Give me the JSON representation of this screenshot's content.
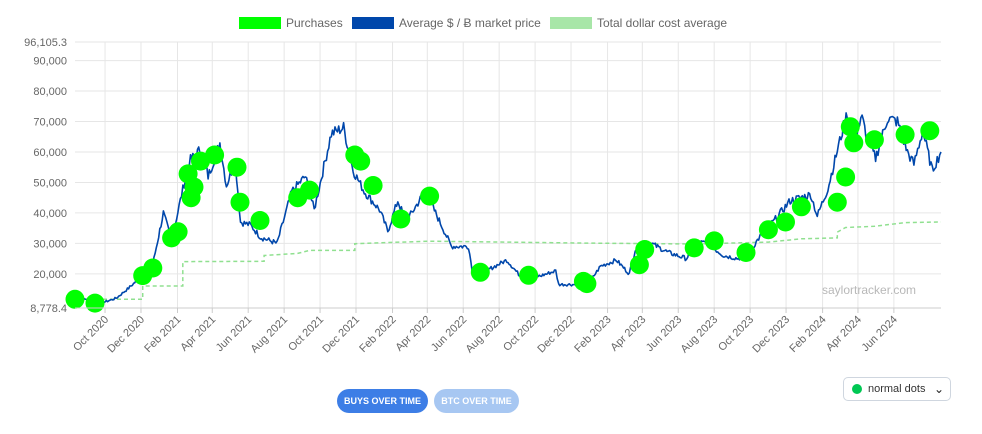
{
  "chart_data": {
    "type": "line",
    "legend": [
      {
        "label": "Purchases",
        "color": "#00ff00",
        "style": "solid"
      },
      {
        "label": "Average $ / Ƀ market price",
        "color": "#0047ab",
        "style": "solid"
      },
      {
        "label": "Total dollar cost average",
        "color": "#90e090",
        "style": "dashed"
      }
    ],
    "legend_position": "top-center",
    "grid": true,
    "ylim": [
      8778.4,
      96105.3
    ],
    "y_ticks": [
      "8,778.4",
      "20,000",
      "30,000",
      "40,000",
      "50,000",
      "60,000",
      "70,000",
      "80,000",
      "90,000",
      "96,105.3"
    ],
    "x_ticks": [
      "Oct 2020",
      "Dec 2020",
      "Feb 2021",
      "Apr 2021",
      "Jun 2021",
      "Aug 2021",
      "Oct 2021",
      "Dec 2021",
      "Feb 2022",
      "Apr 2022",
      "Jun 2022",
      "Aug 2022",
      "Oct 2022",
      "Dec 2022",
      "Feb 2023",
      "Apr 2023",
      "Jun 2023",
      "Aug 2023",
      "Oct 2023",
      "Dec 2023",
      "Feb 2024",
      "Apr 2024",
      "Jun 2024"
    ],
    "x_range": [
      "2020-08-11",
      "2024-08-20"
    ],
    "series": [
      {
        "name": "Average $ / Ƀ market price",
        "color": "#0047ab",
        "points": [
          [
            "2020-08-11",
            11500
          ],
          [
            "2020-09-01",
            11700
          ],
          [
            "2020-10-01",
            10800
          ],
          [
            "2020-10-20",
            12000
          ],
          [
            "2020-11-10",
            15300
          ],
          [
            "2020-12-01",
            19000
          ],
          [
            "2020-12-21",
            23000
          ],
          [
            "2021-01-08",
            40000
          ],
          [
            "2021-01-22",
            31000
          ],
          [
            "2021-02-08",
            46000
          ],
          [
            "2021-02-21",
            57000
          ],
          [
            "2021-03-13",
            61000
          ],
          [
            "2021-03-25",
            52000
          ],
          [
            "2021-04-14",
            63000
          ],
          [
            "2021-04-25",
            49000
          ],
          [
            "2021-05-10",
            57000
          ],
          [
            "2021-05-19",
            37000
          ],
          [
            "2021-06-05",
            36000
          ],
          [
            "2021-06-22",
            32000
          ],
          [
            "2021-07-20",
            30000
          ],
          [
            "2021-08-14",
            47000
          ],
          [
            "2021-09-06",
            52000
          ],
          [
            "2021-09-21",
            41000
          ],
          [
            "2021-10-20",
            66000
          ],
          [
            "2021-11-10",
            68000
          ],
          [
            "2021-11-26",
            54000
          ],
          [
            "2021-12-15",
            47000
          ],
          [
            "2022-01-10",
            41000
          ],
          [
            "2022-01-24",
            34000
          ],
          [
            "2022-02-10",
            44000
          ],
          [
            "2022-02-24",
            37000
          ],
          [
            "2022-03-28",
            47000
          ],
          [
            "2022-04-15",
            40000
          ],
          [
            "2022-05-12",
            29000
          ],
          [
            "2022-06-10",
            29000
          ],
          [
            "2022-06-18",
            19000
          ],
          [
            "2022-07-10",
            21000
          ],
          [
            "2022-08-14",
            24500
          ],
          [
            "2022-09-07",
            19000
          ],
          [
            "2022-10-10",
            19300
          ],
          [
            "2022-11-05",
            21000
          ],
          [
            "2022-11-10",
            16500
          ],
          [
            "2022-12-30",
            16500
          ],
          [
            "2023-01-20",
            22500
          ],
          [
            "2023-02-16",
            24500
          ],
          [
            "2023-03-10",
            20000
          ],
          [
            "2023-03-20",
            28000
          ],
          [
            "2023-04-13",
            30300
          ],
          [
            "2023-05-15",
            27000
          ],
          [
            "2023-06-15",
            25000
          ],
          [
            "2023-06-30",
            30500
          ],
          [
            "2023-07-20",
            30000
          ],
          [
            "2023-08-17",
            26000
          ],
          [
            "2023-09-11",
            25000
          ],
          [
            "2023-10-01",
            27500
          ],
          [
            "2023-10-24",
            34000
          ],
          [
            "2023-11-09",
            37000
          ],
          [
            "2023-12-08",
            44000
          ],
          [
            "2024-01-12",
            46000
          ],
          [
            "2024-01-23",
            39000
          ],
          [
            "2024-02-10",
            48000
          ],
          [
            "2024-02-28",
            62000
          ],
          [
            "2024-03-14",
            73000
          ],
          [
            "2024-03-20",
            62000
          ],
          [
            "2024-04-08",
            71000
          ],
          [
            "2024-04-19",
            63000
          ],
          [
            "2024-05-01",
            58000
          ],
          [
            "2024-05-21",
            71000
          ],
          [
            "2024-06-07",
            70000
          ],
          [
            "2024-06-24",
            60000
          ],
          [
            "2024-07-05",
            56000
          ],
          [
            "2024-07-20",
            67000
          ],
          [
            "2024-08-05",
            54000
          ],
          [
            "2024-08-20",
            60000
          ]
        ]
      },
      {
        "name": "Total dollar cost average",
        "color": "#90e090",
        "points": [
          [
            "2020-08-11",
            11650
          ],
          [
            "2020-09-14",
            11650
          ],
          [
            "2020-12-04",
            11650
          ],
          [
            "2020-12-04",
            16000
          ],
          [
            "2021-02-10",
            16000
          ],
          [
            "2021-02-10",
            24000
          ],
          [
            "2021-06-28",
            24100
          ],
          [
            "2021-06-28",
            26000
          ],
          [
            "2021-08-24",
            26700
          ],
          [
            "2021-09-13",
            27700
          ],
          [
            "2021-11-29",
            27700
          ],
          [
            "2021-11-29",
            29900
          ],
          [
            "2022-02-01",
            30300
          ],
          [
            "2022-04-05",
            30700
          ],
          [
            "2022-12-28",
            30100
          ],
          [
            "2023-06-28",
            29800
          ],
          [
            "2023-11-01",
            30400
          ],
          [
            "2023-12-27",
            31500
          ],
          [
            "2024-02-26",
            31800
          ],
          [
            "2024-02-26",
            33700
          ],
          [
            "2024-03-11",
            35200
          ],
          [
            "2024-04-29",
            35600
          ],
          [
            "2024-06-20",
            36800
          ],
          [
            "2024-08-20",
            37000
          ]
        ]
      }
    ],
    "purchases": [
      [
        "2020-08-11",
        11650
      ],
      [
        "2020-09-14",
        10400
      ],
      [
        "2020-12-04",
        19400
      ],
      [
        "2020-12-21",
        21900
      ],
      [
        "2021-01-22",
        31800
      ],
      [
        "2021-02-02",
        33800
      ],
      [
        "2021-02-19",
        52800
      ],
      [
        "2021-02-24",
        45000
      ],
      [
        "2021-03-01",
        48500
      ],
      [
        "2021-03-12",
        57000
      ],
      [
        "2021-04-05",
        59000
      ],
      [
        "2021-05-13",
        55000
      ],
      [
        "2021-05-18",
        43500
      ],
      [
        "2021-06-21",
        37500
      ],
      [
        "2021-08-24",
        45000
      ],
      [
        "2021-09-13",
        47500
      ],
      [
        "2021-11-29",
        59000
      ],
      [
        "2021-12-09",
        57000
      ],
      [
        "2021-12-30",
        49000
      ],
      [
        "2022-02-15",
        38000
      ],
      [
        "2022-04-05",
        45500
      ],
      [
        "2022-06-30",
        20500
      ],
      [
        "2022-09-20",
        19500
      ],
      [
        "2022-12-22",
        17500
      ],
      [
        "2022-12-28",
        16800
      ],
      [
        "2023-03-27",
        23000
      ],
      [
        "2023-04-05",
        28000
      ],
      [
        "2023-06-28",
        28500
      ],
      [
        "2023-08-01",
        30800
      ],
      [
        "2023-09-24",
        27000
      ],
      [
        "2023-11-01",
        34500
      ],
      [
        "2023-11-30",
        37000
      ],
      [
        "2023-12-27",
        42000
      ],
      [
        "2024-02-26",
        43500
      ],
      [
        "2024-03-11",
        51800
      ],
      [
        "2024-03-19",
        68300
      ],
      [
        "2024-03-25",
        63000
      ],
      [
        "2024-04-29",
        64000
      ],
      [
        "2024-06-20",
        65700
      ],
      [
        "2024-08-01",
        67000
      ]
    ]
  },
  "buttons": {
    "buys_over_time": "BUYS OVER TIME",
    "btc_over_time": "BTC OVER TIME"
  },
  "dropdown": {
    "selected": "normal dots",
    "dot_color": "#00c853"
  },
  "watermark": "saylortracker.com"
}
